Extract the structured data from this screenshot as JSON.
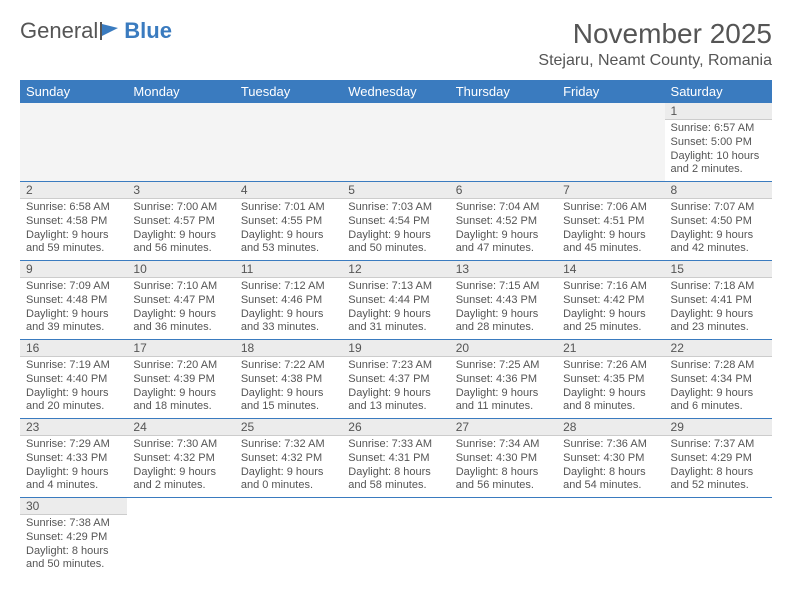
{
  "logo": {
    "part1": "General",
    "part2": "Blue"
  },
  "title": "November 2025",
  "location": "Stejaru, Neamt County, Romania",
  "colors": {
    "header_bg": "#3a7bbf",
    "header_text": "#ffffff",
    "daynum_bg": "#ececec",
    "cell_border": "#3a7bbf",
    "text": "#555555",
    "empty_bg": "#f4f4f4"
  },
  "columns": [
    "Sunday",
    "Monday",
    "Tuesday",
    "Wednesday",
    "Thursday",
    "Friday",
    "Saturday"
  ],
  "weeks": [
    [
      null,
      null,
      null,
      null,
      null,
      null,
      {
        "n": "1",
        "sr": "Sunrise: 6:57 AM",
        "ss": "Sunset: 5:00 PM",
        "dl": "Daylight: 10 hours and 2 minutes."
      }
    ],
    [
      {
        "n": "2",
        "sr": "Sunrise: 6:58 AM",
        "ss": "Sunset: 4:58 PM",
        "dl": "Daylight: 9 hours and 59 minutes."
      },
      {
        "n": "3",
        "sr": "Sunrise: 7:00 AM",
        "ss": "Sunset: 4:57 PM",
        "dl": "Daylight: 9 hours and 56 minutes."
      },
      {
        "n": "4",
        "sr": "Sunrise: 7:01 AM",
        "ss": "Sunset: 4:55 PM",
        "dl": "Daylight: 9 hours and 53 minutes."
      },
      {
        "n": "5",
        "sr": "Sunrise: 7:03 AM",
        "ss": "Sunset: 4:54 PM",
        "dl": "Daylight: 9 hours and 50 minutes."
      },
      {
        "n": "6",
        "sr": "Sunrise: 7:04 AM",
        "ss": "Sunset: 4:52 PM",
        "dl": "Daylight: 9 hours and 47 minutes."
      },
      {
        "n": "7",
        "sr": "Sunrise: 7:06 AM",
        "ss": "Sunset: 4:51 PM",
        "dl": "Daylight: 9 hours and 45 minutes."
      },
      {
        "n": "8",
        "sr": "Sunrise: 7:07 AM",
        "ss": "Sunset: 4:50 PM",
        "dl": "Daylight: 9 hours and 42 minutes."
      }
    ],
    [
      {
        "n": "9",
        "sr": "Sunrise: 7:09 AM",
        "ss": "Sunset: 4:48 PM",
        "dl": "Daylight: 9 hours and 39 minutes."
      },
      {
        "n": "10",
        "sr": "Sunrise: 7:10 AM",
        "ss": "Sunset: 4:47 PM",
        "dl": "Daylight: 9 hours and 36 minutes."
      },
      {
        "n": "11",
        "sr": "Sunrise: 7:12 AM",
        "ss": "Sunset: 4:46 PM",
        "dl": "Daylight: 9 hours and 33 minutes."
      },
      {
        "n": "12",
        "sr": "Sunrise: 7:13 AM",
        "ss": "Sunset: 4:44 PM",
        "dl": "Daylight: 9 hours and 31 minutes."
      },
      {
        "n": "13",
        "sr": "Sunrise: 7:15 AM",
        "ss": "Sunset: 4:43 PM",
        "dl": "Daylight: 9 hours and 28 minutes."
      },
      {
        "n": "14",
        "sr": "Sunrise: 7:16 AM",
        "ss": "Sunset: 4:42 PM",
        "dl": "Daylight: 9 hours and 25 minutes."
      },
      {
        "n": "15",
        "sr": "Sunrise: 7:18 AM",
        "ss": "Sunset: 4:41 PM",
        "dl": "Daylight: 9 hours and 23 minutes."
      }
    ],
    [
      {
        "n": "16",
        "sr": "Sunrise: 7:19 AM",
        "ss": "Sunset: 4:40 PM",
        "dl": "Daylight: 9 hours and 20 minutes."
      },
      {
        "n": "17",
        "sr": "Sunrise: 7:20 AM",
        "ss": "Sunset: 4:39 PM",
        "dl": "Daylight: 9 hours and 18 minutes."
      },
      {
        "n": "18",
        "sr": "Sunrise: 7:22 AM",
        "ss": "Sunset: 4:38 PM",
        "dl": "Daylight: 9 hours and 15 minutes."
      },
      {
        "n": "19",
        "sr": "Sunrise: 7:23 AM",
        "ss": "Sunset: 4:37 PM",
        "dl": "Daylight: 9 hours and 13 minutes."
      },
      {
        "n": "20",
        "sr": "Sunrise: 7:25 AM",
        "ss": "Sunset: 4:36 PM",
        "dl": "Daylight: 9 hours and 11 minutes."
      },
      {
        "n": "21",
        "sr": "Sunrise: 7:26 AM",
        "ss": "Sunset: 4:35 PM",
        "dl": "Daylight: 9 hours and 8 minutes."
      },
      {
        "n": "22",
        "sr": "Sunrise: 7:28 AM",
        "ss": "Sunset: 4:34 PM",
        "dl": "Daylight: 9 hours and 6 minutes."
      }
    ],
    [
      {
        "n": "23",
        "sr": "Sunrise: 7:29 AM",
        "ss": "Sunset: 4:33 PM",
        "dl": "Daylight: 9 hours and 4 minutes."
      },
      {
        "n": "24",
        "sr": "Sunrise: 7:30 AM",
        "ss": "Sunset: 4:32 PM",
        "dl": "Daylight: 9 hours and 2 minutes."
      },
      {
        "n": "25",
        "sr": "Sunrise: 7:32 AM",
        "ss": "Sunset: 4:32 PM",
        "dl": "Daylight: 9 hours and 0 minutes."
      },
      {
        "n": "26",
        "sr": "Sunrise: 7:33 AM",
        "ss": "Sunset: 4:31 PM",
        "dl": "Daylight: 8 hours and 58 minutes."
      },
      {
        "n": "27",
        "sr": "Sunrise: 7:34 AM",
        "ss": "Sunset: 4:30 PM",
        "dl": "Daylight: 8 hours and 56 minutes."
      },
      {
        "n": "28",
        "sr": "Sunrise: 7:36 AM",
        "ss": "Sunset: 4:30 PM",
        "dl": "Daylight: 8 hours and 54 minutes."
      },
      {
        "n": "29",
        "sr": "Sunrise: 7:37 AM",
        "ss": "Sunset: 4:29 PM",
        "dl": "Daylight: 8 hours and 52 minutes."
      }
    ],
    [
      {
        "n": "30",
        "sr": "Sunrise: 7:38 AM",
        "ss": "Sunset: 4:29 PM",
        "dl": "Daylight: 8 hours and 50 minutes."
      },
      null,
      null,
      null,
      null,
      null,
      null
    ]
  ]
}
